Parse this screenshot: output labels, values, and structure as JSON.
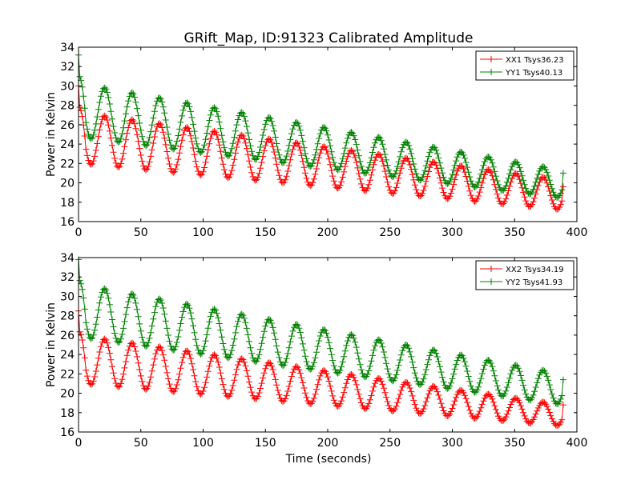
{
  "figure": {
    "title": "GRift_Map, ID:91323 Calibrated Amplitude"
  },
  "chart_data": [
    {
      "type": "line",
      "ylabel": "Power in Kelvin",
      "xlabel": "",
      "xlim": [
        0,
        400
      ],
      "ylim": [
        16,
        34
      ],
      "xticks": [
        0,
        50,
        100,
        150,
        200,
        250,
        300,
        350,
        400
      ],
      "yticks": [
        16,
        18,
        20,
        22,
        24,
        26,
        28,
        30,
        32,
        34
      ],
      "grid": false,
      "legend_position": "top-right",
      "series": [
        {
          "name": "XX1 Tsys36.23",
          "color": "#ff0000",
          "marker": "+",
          "model": {
            "t_start": 0,
            "t_end": 389,
            "period": 22,
            "peak_time": 21,
            "trough_time": 11,
            "peak_start": 27.3,
            "peak_end": 20.3,
            "trough_start": 22.0,
            "trough_end": 17.2,
            "initial_spike": 30.0,
            "end_point": 19.6
          }
        },
        {
          "name": "YY1 Tsys40.13",
          "color": "#008000",
          "marker": "+",
          "model": {
            "t_start": 0,
            "t_end": 389,
            "period": 22,
            "peak_time": 21,
            "trough_time": 11,
            "peak_start": 30.3,
            "peak_end": 21.3,
            "trough_start": 24.7,
            "trough_end": 18.4,
            "initial_spike": 33.2,
            "end_point": 21.0
          }
        }
      ]
    },
    {
      "type": "line",
      "ylabel": "Power in Kelvin",
      "xlabel": "Time (seconds)",
      "xlim": [
        0,
        400
      ],
      "ylim": [
        16,
        34
      ],
      "xticks": [
        0,
        50,
        100,
        150,
        200,
        250,
        300,
        350,
        400
      ],
      "yticks": [
        16,
        18,
        20,
        22,
        24,
        26,
        28,
        30,
        32,
        34
      ],
      "grid": false,
      "legend_position": "top-right",
      "series": [
        {
          "name": "XX2 Tsys34.19",
          "color": "#ff0000",
          "marker": "+",
          "model": {
            "t_start": 0,
            "t_end": 389,
            "period": 22,
            "peak_time": 21,
            "trough_time": 11,
            "peak_start": 26.0,
            "peak_end": 18.8,
            "trough_start": 21.0,
            "trough_end": 16.6,
            "initial_spike": 28.5,
            "end_point": 18.8
          }
        },
        {
          "name": "YY2 Tsys41.93",
          "color": "#008000",
          "marker": "+",
          "model": {
            "t_start": 0,
            "t_end": 389,
            "period": 22,
            "peak_time": 21,
            "trough_time": 11,
            "peak_start": 31.3,
            "peak_end": 22.0,
            "trough_start": 25.8,
            "trough_end": 18.8,
            "initial_spike": 33.8,
            "end_point": 21.4
          }
        }
      ]
    }
  ]
}
